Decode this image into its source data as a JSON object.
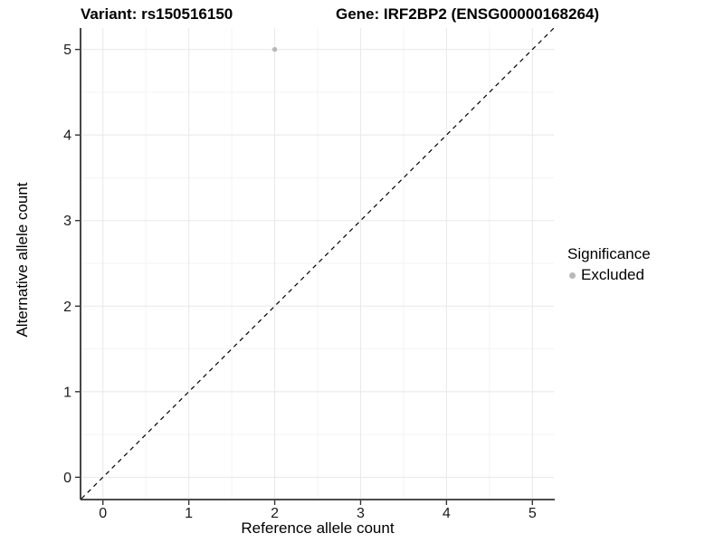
{
  "titles": {
    "left": "Variant: rs150516150",
    "right": "Gene: IRF2BP2 (ENSG00000168264)"
  },
  "legend": {
    "title": "Significance",
    "items": [
      {
        "label": "Excluded",
        "color": "#b8b8b8"
      }
    ]
  },
  "chart_data": {
    "type": "scatter",
    "title": "Variant: rs150516150 — Gene: IRF2BP2 (ENSG00000168264)",
    "xlabel": "Reference allele count",
    "ylabel": "Alternative allele count",
    "xlim": [
      -0.25,
      5.25
    ],
    "ylim": [
      -0.25,
      5.25
    ],
    "x_ticks": [
      0,
      1,
      2,
      3,
      4,
      5
    ],
    "y_ticks": [
      0,
      1,
      2,
      3,
      4,
      5
    ],
    "minor_grid_step": 0.5,
    "grid": true,
    "legend_position": "right",
    "series": [
      {
        "name": "Excluded",
        "color": "#b8b8b8",
        "points": [
          {
            "x": 2,
            "y": 5
          }
        ]
      }
    ],
    "reference_line": {
      "slope": 1,
      "intercept": 0,
      "style": "dashed",
      "color": "#000000"
    }
  },
  "colors": {
    "background": "#ffffff",
    "grid_major": "#e8e8e8",
    "grid_minor": "#f3f3f3",
    "axis_line": "#333333",
    "tick_text": "#1a1a1a",
    "point": "#b8b8b8",
    "ref_line": "#000000"
  }
}
